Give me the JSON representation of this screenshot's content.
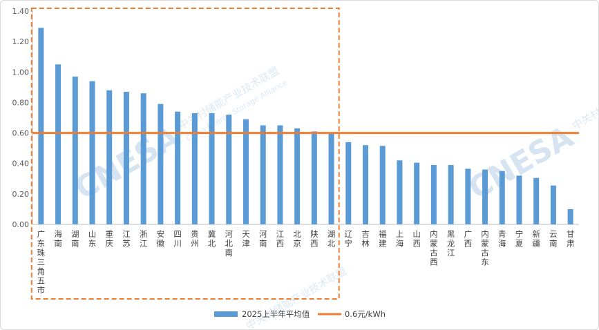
{
  "chart_data": {
    "type": "bar",
    "title": "",
    "xlabel": "",
    "ylabel": "",
    "ylim": [
      0,
      1.4
    ],
    "yticks": [
      "0.00",
      "0.20",
      "0.40",
      "0.60",
      "0.80",
      "1.00",
      "1.20",
      "1.40"
    ],
    "grid": false,
    "legend_position": "bottom",
    "categories": [
      "广东珠三角五市",
      "海南",
      "湖南",
      "山东",
      "重庆",
      "江苏",
      "浙江",
      "安徽",
      "四川",
      "贵州",
      "冀北",
      "河北南",
      "天津",
      "河南",
      "江西",
      "北京",
      "陕西",
      "湖北",
      "辽宁",
      "吉林",
      "福建",
      "上海",
      "山西",
      "内蒙古西",
      "黑龙江",
      "广西",
      "内蒙古东",
      "青海",
      "宁夏",
      "新疆",
      "云南",
      "甘肃"
    ],
    "series": [
      {
        "name": "2025上半年平均值",
        "type": "bar",
        "color": "#5b9bd5",
        "values": [
          1.29,
          1.05,
          0.97,
          0.94,
          0.88,
          0.87,
          0.86,
          0.79,
          0.74,
          0.73,
          0.73,
          0.72,
          0.69,
          0.65,
          0.65,
          0.63,
          0.61,
          0.6,
          0.54,
          0.52,
          0.515,
          0.42,
          0.405,
          0.39,
          0.39,
          0.365,
          0.36,
          0.35,
          0.32,
          0.305,
          0.255,
          0.1
        ]
      },
      {
        "name": "0.6元/kWh",
        "type": "line",
        "color": "#ed7d31",
        "value": 0.6
      }
    ],
    "highlight_box": {
      "first_category": "广东珠三角五市",
      "last_category": "湖北",
      "color": "#ed7d31",
      "style": "dashed"
    }
  },
  "watermark": {
    "logo_text": "CNESA",
    "org_text": "中关村储能产业技术联盟",
    "org_text_en": "China Energy Storage Alliance"
  }
}
